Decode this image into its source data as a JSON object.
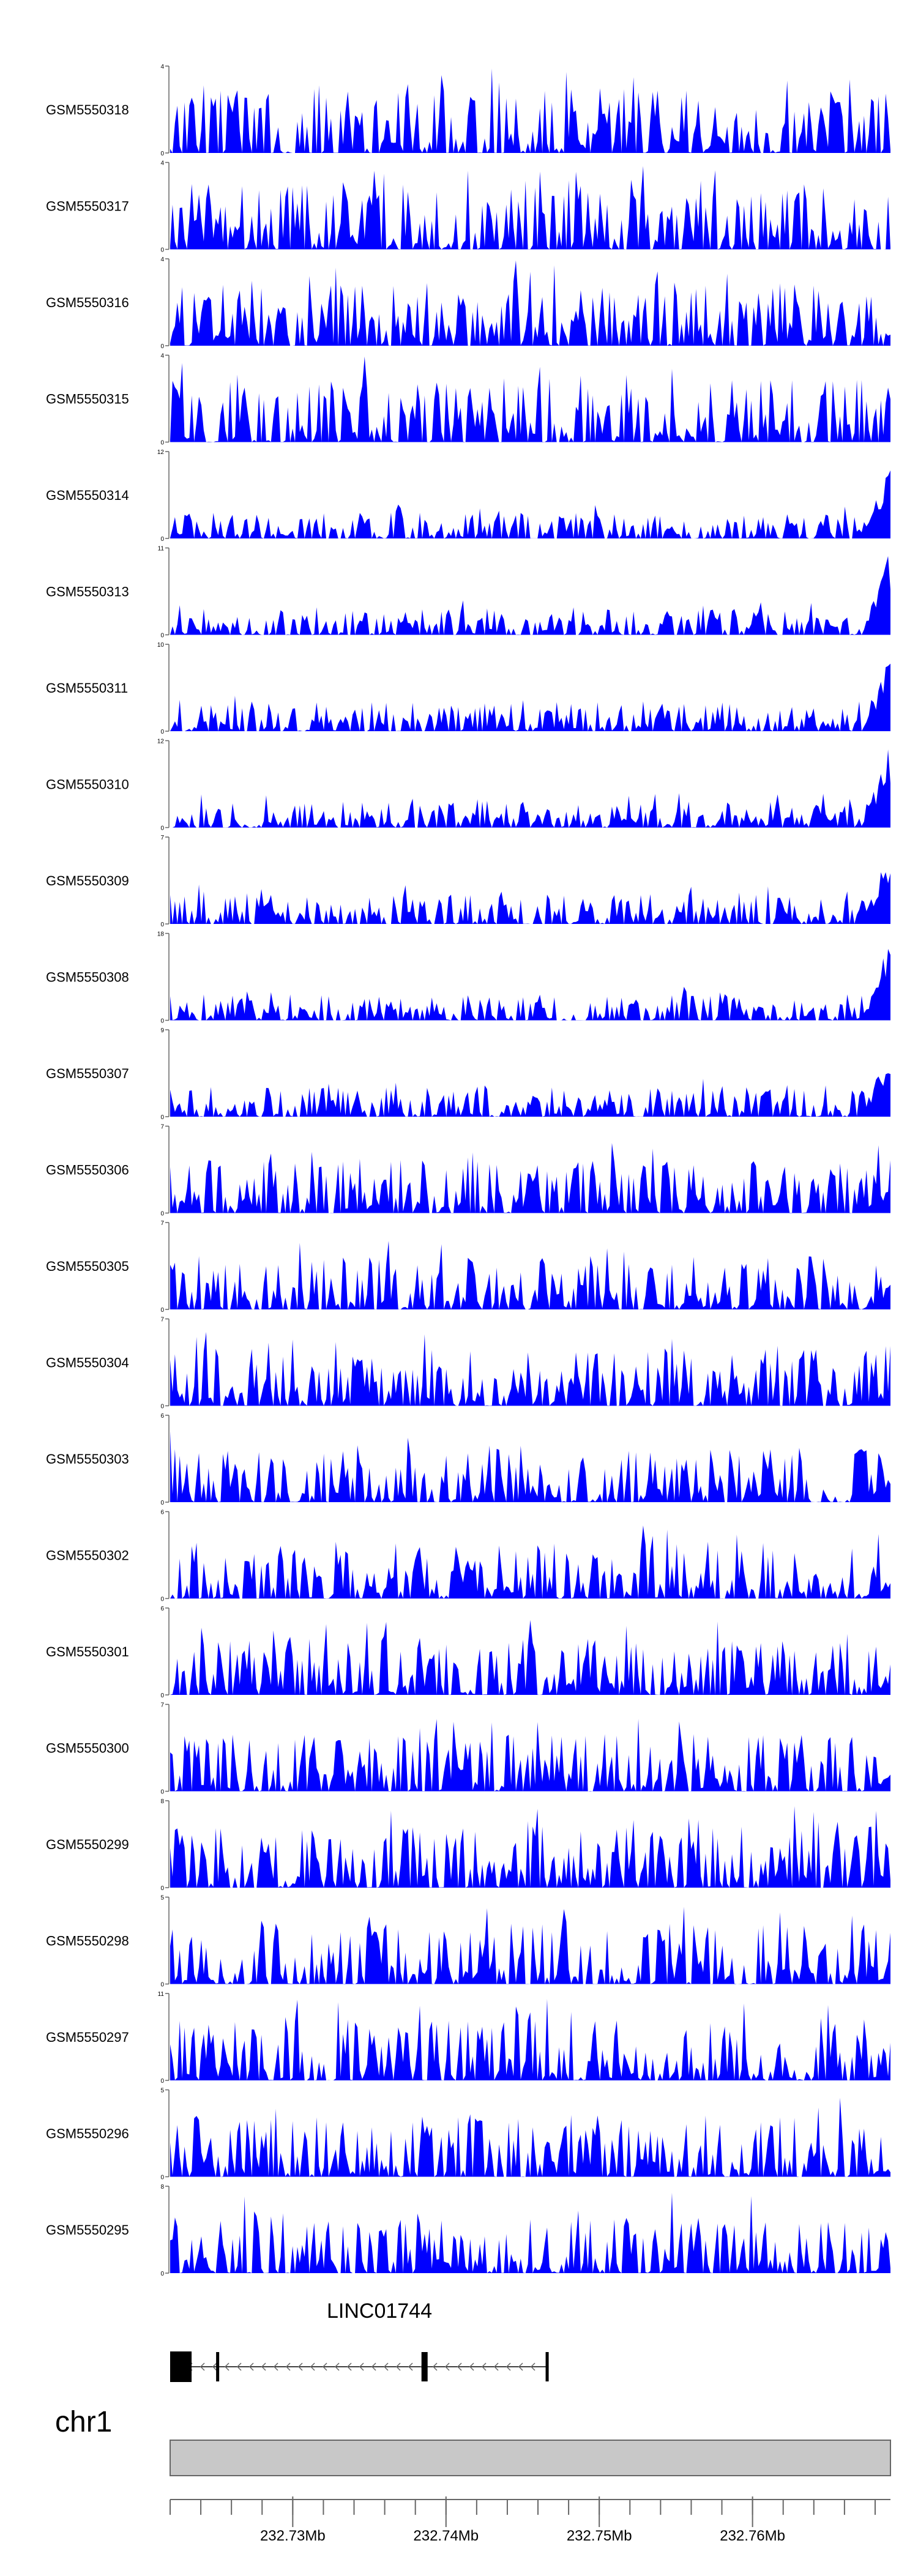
{
  "chart_data": {
    "type": "area",
    "fill_color": "#0000ff",
    "x_range_bp": [
      232722000,
      232769000
    ],
    "tracks": [
      {
        "name": "GSM5550318",
        "ymax": 4,
        "seed": 318,
        "end_boost": 0.0
      },
      {
        "name": "GSM5550317",
        "ymax": 4,
        "seed": 317,
        "end_boost": 0.0
      },
      {
        "name": "GSM5550316",
        "ymax": 4,
        "seed": 316,
        "end_boost": 0.0
      },
      {
        "name": "GSM5550315",
        "ymax": 4,
        "seed": 315,
        "end_boost": 0.0
      },
      {
        "name": "GSM5550314",
        "ymax": 12,
        "seed": 314,
        "end_boost": 1.0
      },
      {
        "name": "GSM5550313",
        "ymax": 11,
        "seed": 313,
        "end_boost": 1.0
      },
      {
        "name": "GSM5550311",
        "ymax": 10,
        "seed": 311,
        "end_boost": 0.9
      },
      {
        "name": "GSM5550310",
        "ymax": 12,
        "seed": 310,
        "end_boost": 1.0
      },
      {
        "name": "GSM5550309",
        "ymax": 7,
        "seed": 309,
        "end_boost": 0.9
      },
      {
        "name": "GSM5550308",
        "ymax": 18,
        "seed": 308,
        "end_boost": 1.0
      },
      {
        "name": "GSM5550307",
        "ymax": 9,
        "seed": 307,
        "end_boost": 0.9
      },
      {
        "name": "GSM5550306",
        "ymax": 7,
        "seed": 306,
        "end_boost": 0.3
      },
      {
        "name": "GSM5550305",
        "ymax": 7,
        "seed": 305,
        "end_boost": 0.3
      },
      {
        "name": "GSM5550304",
        "ymax": 7,
        "seed": 304,
        "end_boost": 0.2
      },
      {
        "name": "GSM5550303",
        "ymax": 6,
        "seed": 303,
        "end_boost": 0.3
      },
      {
        "name": "GSM5550302",
        "ymax": 6,
        "seed": 302,
        "end_boost": 0.2
      },
      {
        "name": "GSM5550301",
        "ymax": 6,
        "seed": 301,
        "end_boost": 0.2
      },
      {
        "name": "GSM5550300",
        "ymax": 7,
        "seed": 300,
        "end_boost": 0.2
      },
      {
        "name": "GSM5550299",
        "ymax": 8,
        "seed": 299,
        "end_boost": 0.1
      },
      {
        "name": "GSM5550298",
        "ymax": 5,
        "seed": 298,
        "end_boost": 0.1
      },
      {
        "name": "GSM5550297",
        "ymax": 11,
        "seed": 297,
        "end_boost": 0.1
      },
      {
        "name": "GSM5550296",
        "ymax": 5,
        "seed": 296,
        "end_boost": 0.1
      },
      {
        "name": "GSM5550295",
        "ymax": 8,
        "seed": 295,
        "end_boost": 0.1
      }
    ],
    "gene": {
      "name": "LINC01744",
      "strand": "-",
      "exons_bp": [
        [
          232722000,
          232723400
        ],
        [
          232725000,
          232725200
        ],
        [
          232738400,
          232738800
        ],
        [
          232746500,
          232746700
        ]
      ]
    },
    "chromosome": {
      "name": "chr1",
      "ticks": [
        {
          "pos": 232730000,
          "label": "232.73Mb"
        },
        {
          "pos": 232740000,
          "label": "232.74Mb"
        },
        {
          "pos": 232750000,
          "label": "232.75Mb"
        },
        {
          "pos": 232760000,
          "label": "232.76Mb"
        }
      ]
    }
  }
}
